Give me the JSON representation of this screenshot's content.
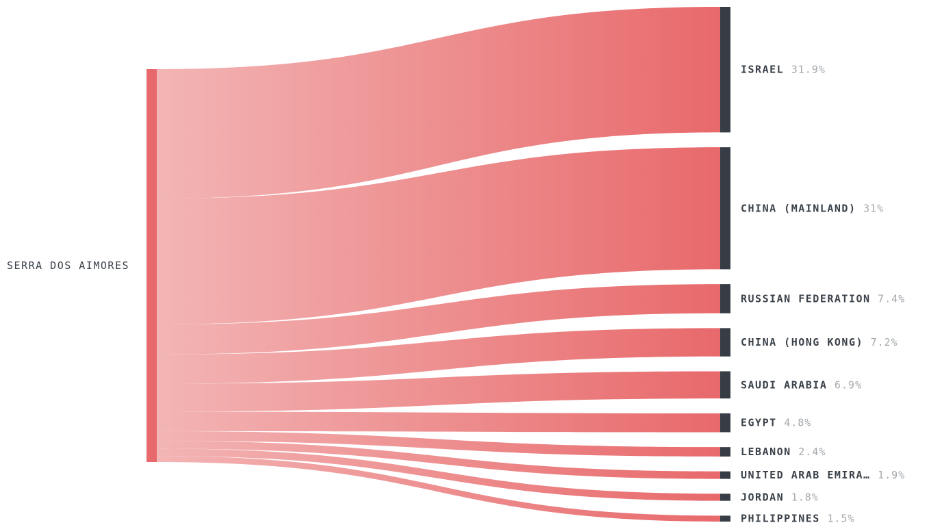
{
  "chart_data": {
    "type": "sankey",
    "source": "SERRA DOS AIMORES",
    "targets": [
      {
        "name": "ISRAEL",
        "percent_label": "31.9%",
        "value": 31.9
      },
      {
        "name": "CHINA (MAINLAND)",
        "percent_label": "31%",
        "value": 31.0
      },
      {
        "name": "RUSSIAN FEDERATION",
        "percent_label": "7.4%",
        "value": 7.4
      },
      {
        "name": "CHINA (HONG KONG)",
        "percent_label": "7.2%",
        "value": 7.2
      },
      {
        "name": "SAUDI ARABIA",
        "percent_label": "6.9%",
        "value": 6.9
      },
      {
        "name": "EGYPT",
        "percent_label": "4.8%",
        "value": 4.8
      },
      {
        "name": "LEBANON",
        "percent_label": "2.4%",
        "value": 2.4
      },
      {
        "name": "UNITED ARAB EMIRA…",
        "percent_label": "1.9%",
        "value": 1.9
      },
      {
        "name": "JORDAN",
        "percent_label": "1.8%",
        "value": 1.8
      },
      {
        "name": "PHILIPPINES",
        "percent_label": "1.5%",
        "value": 1.5
      }
    ],
    "colors": {
      "source_bar": "#e8696b",
      "target_bar": "#363d45",
      "flow_start": "#f3b5b5",
      "flow_end": "#e8696b"
    }
  }
}
